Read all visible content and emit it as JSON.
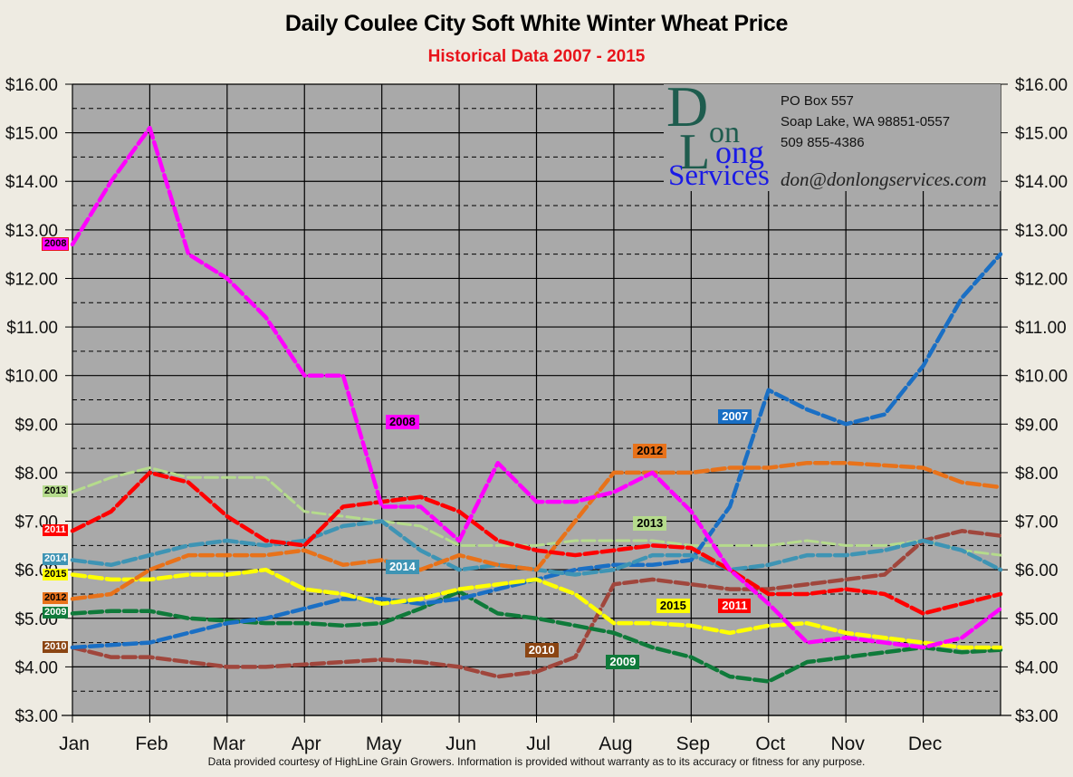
{
  "header": {
    "title": "Daily Coulee City Soft White Winter Wheat Price",
    "subtitle": "Historical Data 2007 - 2015"
  },
  "logo": {
    "name_line1_D": "D",
    "name_line1_rest": "on",
    "name_line2_L": "L",
    "name_line2_rest": "ong",
    "name_line3": "Services",
    "address_line1": "PO Box 557",
    "address_line2": "Soap Lake, WA 98851-0557",
    "phone": "509 855-4386",
    "email": "don@donlongservices.com"
  },
  "footer": {
    "disclaimer": "Data provided courtesy of HighLine Grain Growers.  Information is provided without warranty as to its accuracy or fitness for any purpose."
  },
  "colors": {
    "background": "#EEEBE2",
    "plot_background": "#A9A9A9",
    "title": "#000000",
    "subtitle": "#E8141B"
  },
  "chart_data": {
    "type": "line",
    "title": "Daily Coulee City Soft White Winter Wheat Price",
    "subtitle": "Historical Data 2007 - 2015",
    "xlabel": "",
    "ylabel": "",
    "ylim": [
      3,
      16
    ],
    "y_ticks": [
      "$3.00",
      "$4.00",
      "$5.00",
      "$6.00",
      "$7.00",
      "$8.00",
      "$9.00",
      "$10.00",
      "$11.00",
      "$12.00",
      "$13.00",
      "$14.00",
      "$15.00",
      "$16.00"
    ],
    "y_axis_both_sides": true,
    "grid": {
      "major_solid_every": 1.0,
      "minor_dashed_every": 0.5,
      "vertical_month_lines": true
    },
    "categories": [
      "Jan",
      "Feb",
      "Mar",
      "Apr",
      "May",
      "Jun",
      "Jul",
      "Aug",
      "Sep",
      "Oct",
      "Nov",
      "Dec"
    ],
    "x_note": "x values are fractional months from start of Jan (0) to end of Dec (12)",
    "x": [
      0,
      0.5,
      1,
      1.5,
      2,
      2.5,
      3,
      3.5,
      4,
      4.5,
      5,
      5.5,
      6,
      6.5,
      7,
      7.5,
      8,
      8.5,
      9,
      9.5,
      10,
      10.5,
      11,
      11.5,
      12
    ],
    "series": [
      {
        "name": "2007",
        "color": "#1A6FC4",
        "start_label": "2007",
        "values": [
          4.4,
          4.45,
          4.5,
          4.7,
          4.9,
          5.0,
          5.2,
          5.4,
          5.4,
          5.3,
          5.4,
          5.6,
          5.8,
          6.0,
          6.1,
          6.1,
          6.2,
          7.3,
          9.7,
          9.3,
          9.0,
          9.2,
          10.2,
          11.6,
          12.5
        ]
      },
      {
        "name": "2008",
        "color": "#FF00FF",
        "start_label": "2008",
        "values": [
          12.7,
          14.0,
          15.1,
          12.5,
          12.0,
          11.2,
          10.0,
          10.0,
          7.3,
          7.3,
          6.6,
          8.2,
          7.4,
          7.4,
          7.6,
          8.0,
          7.2,
          6.0,
          5.3,
          4.5,
          4.6,
          4.5,
          4.4,
          4.6,
          5.2
        ]
      },
      {
        "name": "2009",
        "color": "#0F7A3A",
        "start_label": "2009",
        "values": [
          5.1,
          5.15,
          5.15,
          5.0,
          4.95,
          4.9,
          4.9,
          4.85,
          4.9,
          5.2,
          5.55,
          5.1,
          5.0,
          4.85,
          4.7,
          4.4,
          4.2,
          3.8,
          3.7,
          4.1,
          4.2,
          4.3,
          4.4,
          4.3,
          4.35
        ]
      },
      {
        "name": "2010",
        "color": "#A0463C",
        "start_label": "2010",
        "values": [
          4.4,
          4.2,
          4.2,
          4.1,
          4.0,
          4.0,
          4.05,
          4.1,
          4.15,
          4.1,
          4.0,
          3.8,
          3.9,
          4.2,
          5.7,
          5.8,
          5.7,
          5.6,
          5.6,
          5.7,
          5.8,
          5.9,
          6.6,
          6.8,
          6.7
        ]
      },
      {
        "name": "2011",
        "color": "#FF0000",
        "start_label": "2011",
        "values": [
          6.8,
          7.2,
          8.0,
          7.8,
          7.1,
          6.6,
          6.5,
          7.3,
          7.4,
          7.5,
          7.2,
          6.6,
          6.4,
          6.3,
          6.4,
          6.5,
          6.45,
          6.0,
          5.5,
          5.5,
          5.6,
          5.5,
          5.1,
          5.3,
          5.5
        ]
      },
      {
        "name": "2012",
        "color": "#E8721A",
        "start_label": "2012",
        "values": [
          5.4,
          5.5,
          6.0,
          6.3,
          6.3,
          6.3,
          6.4,
          6.1,
          6.2,
          6.0,
          6.3,
          6.1,
          6.0,
          7.0,
          8.0,
          8.0,
          8.0,
          8.1,
          8.1,
          8.2,
          8.2,
          8.15,
          8.1,
          7.8,
          7.7
        ]
      },
      {
        "name": "2013",
        "color": "#B5DB8C",
        "start_label": "2013",
        "values": [
          7.6,
          7.9,
          8.1,
          7.9,
          7.9,
          7.9,
          7.2,
          7.1,
          7.0,
          6.9,
          6.5,
          6.5,
          6.5,
          6.6,
          6.6,
          6.6,
          6.5,
          6.5,
          6.5,
          6.6,
          6.5,
          6.5,
          6.6,
          6.4,
          6.3
        ]
      },
      {
        "name": "2014",
        "color": "#3E94B4",
        "start_label": "2014",
        "values": [
          6.2,
          6.1,
          6.3,
          6.5,
          6.6,
          6.5,
          6.6,
          6.9,
          7.0,
          6.4,
          6.0,
          6.1,
          6.0,
          5.9,
          6.0,
          6.3,
          6.3,
          6.0,
          6.1,
          6.3,
          6.3,
          6.4,
          6.6,
          6.4,
          6.0
        ]
      },
      {
        "name": "2015",
        "color": "#FFFF00",
        "start_label": "2015",
        "values": [
          5.9,
          5.8,
          5.8,
          5.9,
          5.9,
          6.0,
          5.6,
          5.5,
          5.3,
          5.4,
          5.6,
          5.7,
          5.8,
          5.5,
          4.9,
          4.9,
          4.85,
          4.7,
          4.85,
          4.9,
          4.7,
          4.6,
          4.5,
          4.4,
          4.4
        ]
      }
    ],
    "inline_labels": [
      {
        "text": "2008",
        "series": "2008",
        "month_pos": 4.05,
        "price": 9.05
      },
      {
        "text": "2014",
        "series": "2014",
        "month_pos": 4.05,
        "price": 6.05
      },
      {
        "text": "2012",
        "series": "2012",
        "month_pos": 7.25,
        "price": 8.45
      },
      {
        "text": "2013",
        "series": "2013",
        "month_pos": 7.25,
        "price": 6.95
      },
      {
        "text": "2007",
        "series": "2007",
        "month_pos": 8.35,
        "price": 9.15
      },
      {
        "text": "2015",
        "series": "2015",
        "month_pos": 7.55,
        "price": 5.25
      },
      {
        "text": "2011",
        "series": "2011",
        "month_pos": 8.35,
        "price": 5.25
      },
      {
        "text": "2010",
        "series": "2010",
        "month_pos": 5.85,
        "price": 4.35
      },
      {
        "text": "2009",
        "series": "2009",
        "month_pos": 6.9,
        "price": 4.1
      }
    ],
    "legend_position": "inline labels at left axis and within plot"
  }
}
